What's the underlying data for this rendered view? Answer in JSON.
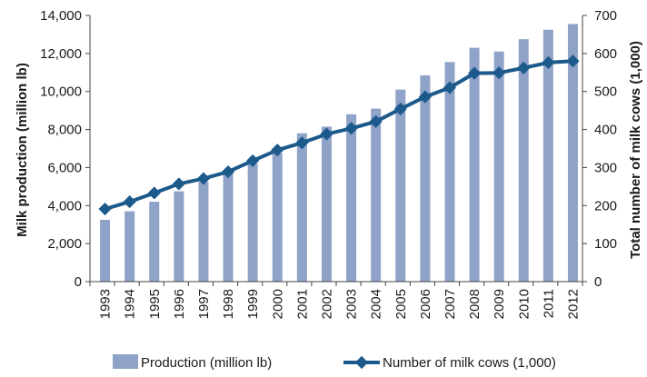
{
  "chart_data": {
    "type": "bar+line",
    "categories": [
      "1993",
      "1994",
      "1995",
      "1996",
      "1997",
      "1998",
      "1999",
      "2000",
      "2001",
      "2002",
      "2003",
      "2004",
      "2005",
      "2006",
      "2007",
      "2008",
      "2009",
      "2010",
      "2011",
      "2012"
    ],
    "series": [
      {
        "name": "Production (million lb)",
        "type": "bar",
        "axis": "left",
        "values": [
          3250,
          3700,
          4200,
          4750,
          5250,
          5800,
          6200,
          6750,
          7800,
          8150,
          8800,
          9100,
          10100,
          10850,
          11550,
          12300,
          12100,
          12750,
          13250,
          13550
        ]
      },
      {
        "name": "Number of milk cows (1,000)",
        "type": "line",
        "axis": "right",
        "values": [
          191,
          210,
          233,
          257,
          271,
          289,
          318,
          346,
          365,
          388,
          403,
          421,
          454,
          486,
          510,
          548,
          549,
          562,
          576,
          580
        ]
      }
    ],
    "ylabel": "Milk production (million lb)",
    "ylabel_right": "Total number of milk cows (1,000)",
    "ylim": [
      0,
      14000
    ],
    "ylim_right": [
      0,
      700
    ],
    "yticks": [
      "0",
      "2,000",
      "4,000",
      "6,000",
      "8,000",
      "10,000",
      "12,000",
      "14,000"
    ],
    "yticks_right": [
      "0",
      "100",
      "200",
      "300",
      "400",
      "500",
      "600",
      "700"
    ],
    "legend_position": "bottom",
    "grid": false,
    "colors": {
      "bar": "#8fa3c8",
      "line": "#1d5a8c",
      "axis": "#444444"
    }
  }
}
